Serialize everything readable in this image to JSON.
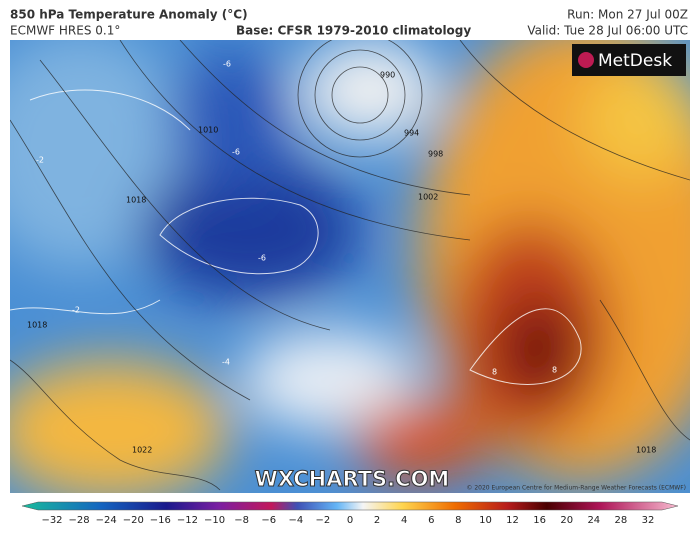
{
  "header": {
    "title": "850 hPa Temperature Anomaly (°C)",
    "model": "ECMWF HRES 0.1°",
    "base": "Base: CFSR 1979-2010 climatology",
    "run": "Run: Mon 27 Jul 00Z",
    "valid": "Valid: Tue 28 Jul 06:00 UTC"
  },
  "logo": "MetDesk",
  "watermark": "WXCHARTS.COM",
  "copyright": "© 2020 European Centre for Medium-Range Weather Forecasts (ECMWF)",
  "isobar_labels": [
    "990",
    "994",
    "998",
    "1002",
    "1010",
    "1018",
    "1018",
    "1022",
    "1018"
  ],
  "anomaly_labels": [
    "-6",
    "-2",
    "-2",
    "-6",
    "-6",
    "-4",
    "8",
    "8"
  ],
  "colorbar_labels": [
    "−32",
    "−28",
    "−24",
    "−20",
    "−16",
    "−12",
    "−10",
    "−8",
    "−6",
    "−4",
    "−2",
    "0",
    "2",
    "4",
    "6",
    "8",
    "10",
    "12",
    "16",
    "20",
    "24",
    "28",
    "32"
  ]
}
